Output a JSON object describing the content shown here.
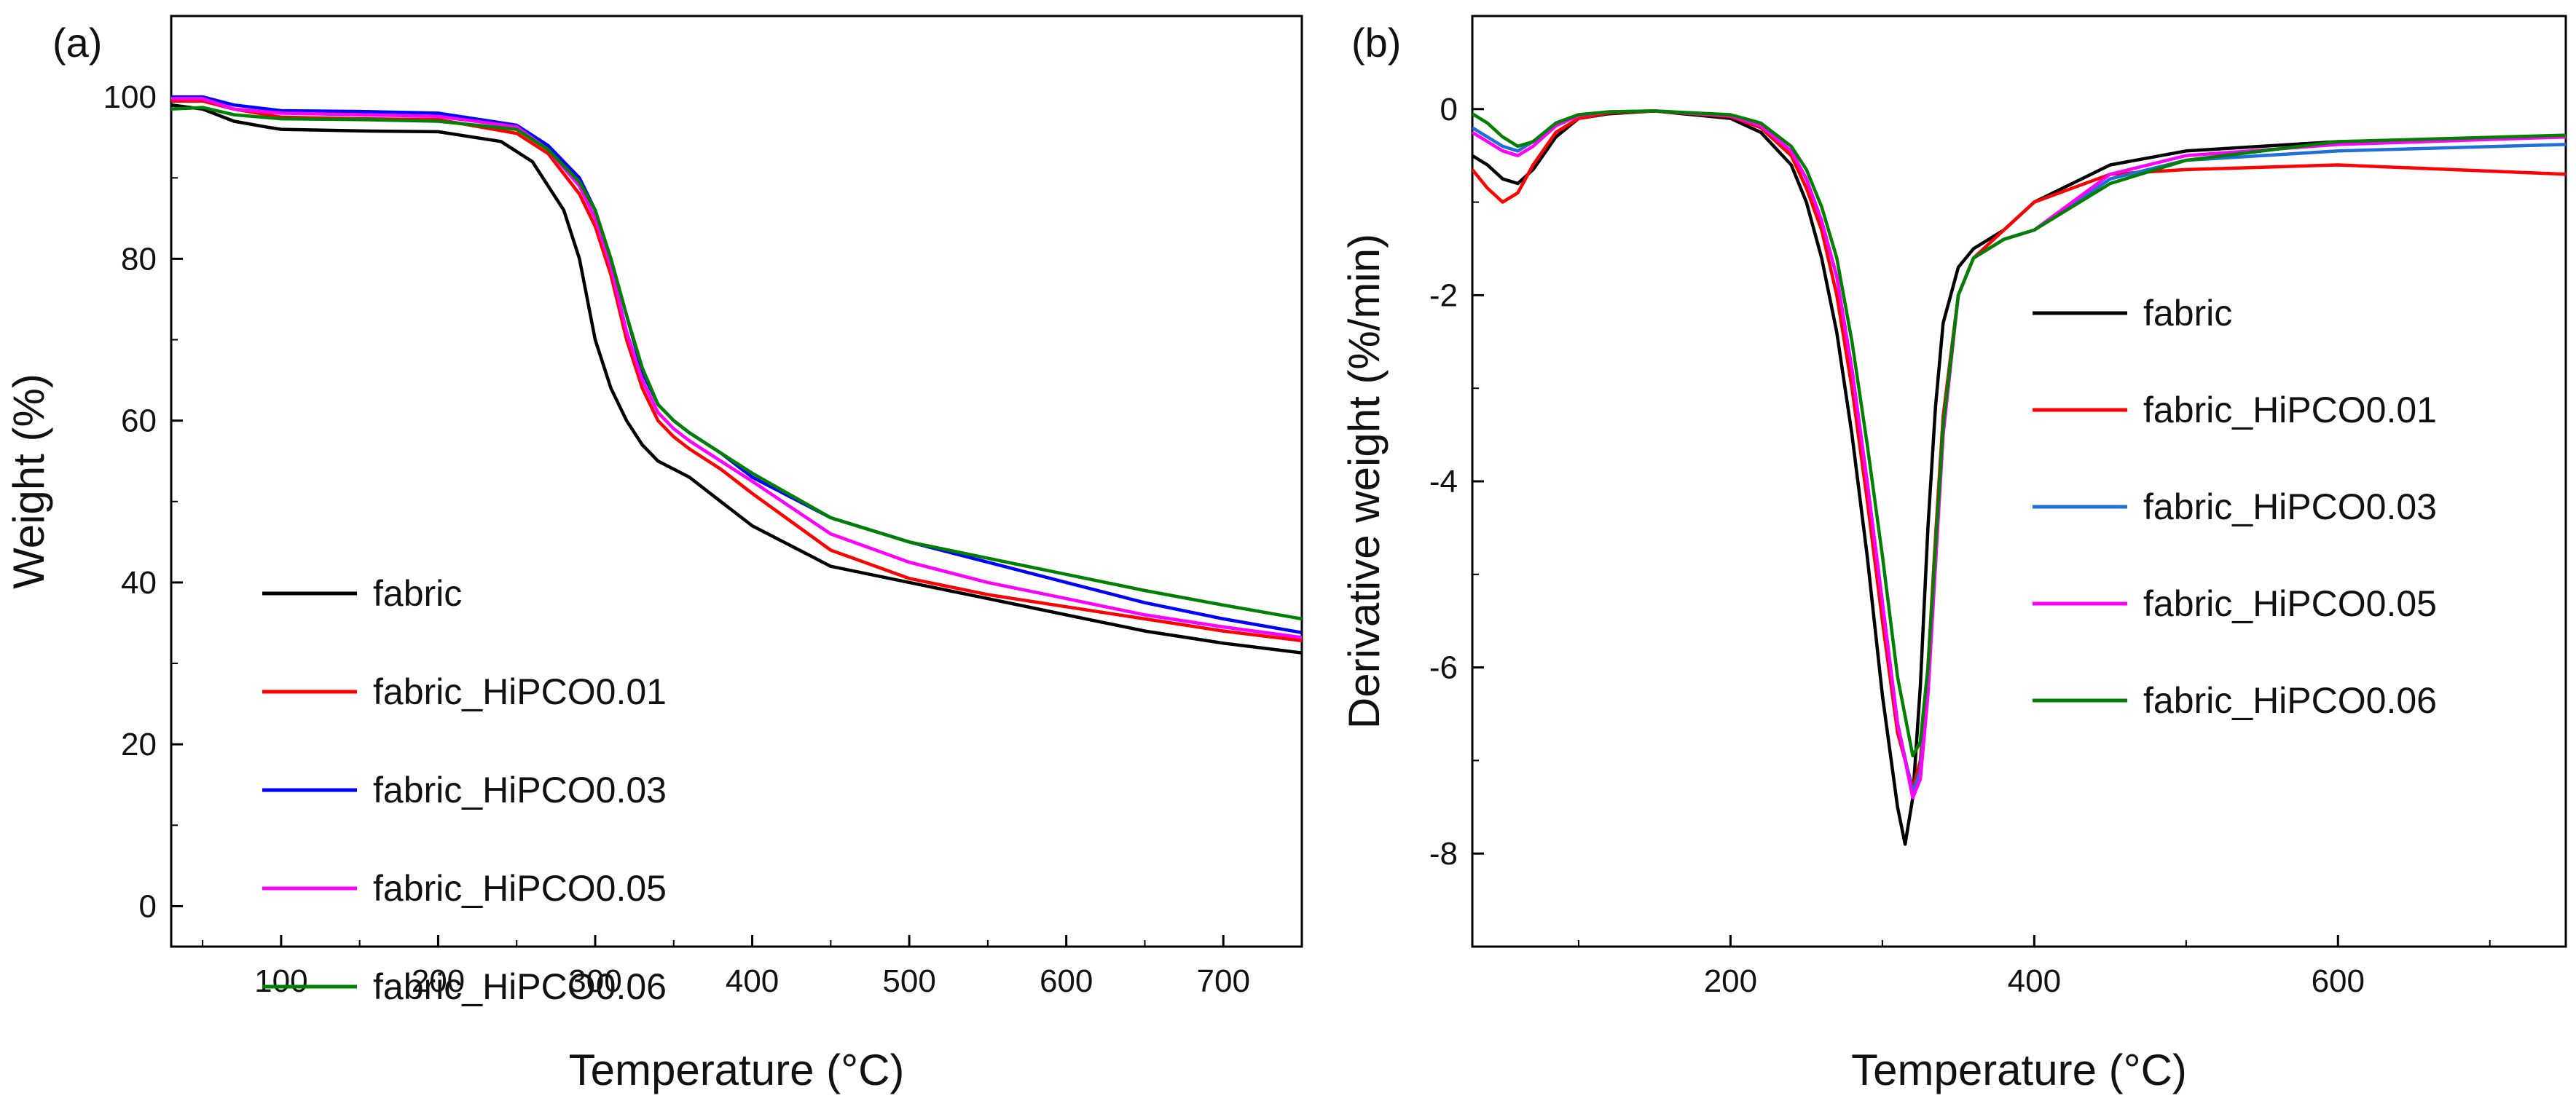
{
  "figure": {
    "panels": [
      "(a)",
      "(b)"
    ]
  },
  "chart_data": [
    {
      "type": "line",
      "panel_label": "(a)",
      "xlabel": "Temperature (°C)",
      "ylabel": "Weight (%)",
      "xlim": [
        30,
        750
      ],
      "ylim": [
        -5,
        110
      ],
      "x_ticks": [
        100,
        200,
        300,
        400,
        500,
        600,
        700
      ],
      "x_tick_labels": [
        "100",
        "200",
        "300",
        "400",
        "500",
        "600",
        "700"
      ],
      "y_ticks": [
        0,
        20,
        40,
        60,
        80,
        100
      ],
      "y_tick_labels": [
        "0",
        "20",
        "40",
        "60",
        "80",
        "100"
      ],
      "legend_position": "lower-left",
      "series": [
        {
          "name": "fabric",
          "color": "#000000",
          "x": [
            30,
            50,
            70,
            90,
            100,
            150,
            200,
            240,
            260,
            280,
            290,
            300,
            310,
            320,
            330,
            340,
            350,
            360,
            380,
            400,
            450,
            500,
            550,
            600,
            650,
            700,
            750
          ],
          "y": [
            99,
            98.5,
            97,
            96.3,
            96,
            95.8,
            95.7,
            94.5,
            92,
            86,
            80,
            70,
            64,
            60,
            57,
            55,
            54,
            53,
            50,
            47,
            42,
            40,
            38,
            36,
            34,
            32.5,
            31.3
          ]
        },
        {
          "name": "fabric_HiPCO0.01",
          "color": "#ff0000",
          "x": [
            30,
            50,
            70,
            100,
            150,
            200,
            250,
            270,
            290,
            300,
            310,
            320,
            330,
            340,
            350,
            360,
            380,
            400,
            450,
            500,
            550,
            600,
            650,
            700,
            750
          ],
          "y": [
            99.5,
            99.5,
            98.5,
            97.5,
            97.3,
            97.2,
            95.5,
            93,
            88,
            84,
            78,
            70,
            64,
            60,
            58,
            56.5,
            54,
            51,
            44,
            40.5,
            38.5,
            37,
            35.5,
            34,
            32.8
          ]
        },
        {
          "name": "fabric_HiPCO0.03",
          "color": "#0000ff",
          "x": [
            30,
            50,
            70,
            100,
            150,
            200,
            250,
            270,
            290,
            300,
            310,
            320,
            330,
            340,
            350,
            360,
            380,
            400,
            450,
            500,
            550,
            600,
            650,
            700,
            750
          ],
          "y": [
            100,
            100,
            99,
            98.3,
            98.2,
            98,
            96.5,
            94,
            90,
            86,
            80,
            73,
            66,
            62,
            60,
            58.5,
            56,
            53,
            48,
            45,
            42.5,
            40,
            37.5,
            35.5,
            33.8
          ]
        },
        {
          "name": "fabric_HiPCO0.05",
          "color": "#ff00ff",
          "x": [
            30,
            50,
            70,
            100,
            150,
            200,
            250,
            270,
            290,
            300,
            310,
            320,
            330,
            340,
            350,
            360,
            380,
            400,
            450,
            500,
            550,
            600,
            650,
            700,
            750
          ],
          "y": [
            99.8,
            99.8,
            98.5,
            98,
            97.8,
            97.6,
            96.3,
            93.5,
            89,
            85,
            79,
            71,
            65,
            61,
            59,
            57.5,
            55,
            52.5,
            46,
            42.5,
            40,
            38,
            36,
            34.5,
            33.2
          ]
        },
        {
          "name": "fabric_HiPCO0.06",
          "color": "#008000",
          "x": [
            30,
            50,
            70,
            100,
            150,
            200,
            250,
            270,
            290,
            300,
            310,
            320,
            330,
            340,
            350,
            360,
            380,
            400,
            450,
            500,
            550,
            600,
            650,
            700,
            750
          ],
          "y": [
            98.5,
            98.7,
            97.8,
            97.3,
            97.2,
            97,
            96,
            93.5,
            89.5,
            86,
            80,
            73,
            66.5,
            62,
            60,
            58.5,
            56,
            53.5,
            48,
            45,
            43,
            41,
            39,
            37.2,
            35.5
          ]
        }
      ]
    },
    {
      "type": "line",
      "panel_label": "(b)",
      "xlabel": "Temperature (°C)",
      "ylabel": "Derivative weight (%/min)",
      "xlim": [
        30,
        750
      ],
      "ylim": [
        -9,
        1
      ],
      "x_ticks": [
        200,
        400,
        600
      ],
      "x_tick_labels": [
        "200",
        "400",
        "600"
      ],
      "y_ticks": [
        0,
        -2,
        -4,
        -6,
        -8
      ],
      "y_tick_labels": [
        "0",
        "-2",
        "-4",
        "-6",
        "-8"
      ],
      "legend_position": "right",
      "series": [
        {
          "name": "fabric",
          "color": "#000000",
          "x": [
            30,
            40,
            50,
            60,
            70,
            85,
            100,
            120,
            150,
            200,
            220,
            240,
            250,
            260,
            270,
            280,
            290,
            300,
            310,
            315,
            320,
            325,
            330,
            335,
            340,
            350,
            360,
            380,
            400,
            450,
            500,
            600,
            750
          ],
          "y": [
            -0.5,
            -0.6,
            -0.75,
            -0.8,
            -0.65,
            -0.3,
            -0.1,
            -0.05,
            -0.02,
            -0.1,
            -0.25,
            -0.6,
            -1.0,
            -1.6,
            -2.4,
            -3.5,
            -4.8,
            -6.3,
            -7.5,
            -7.9,
            -7.4,
            -6.2,
            -4.5,
            -3.2,
            -2.3,
            -1.7,
            -1.5,
            -1.3,
            -1.0,
            -0.6,
            -0.45,
            -0.35,
            -0.3
          ]
        },
        {
          "name": "fabric_HiPCO0.01",
          "color": "#ff0000",
          "x": [
            30,
            40,
            50,
            60,
            70,
            85,
            100,
            120,
            150,
            200,
            220,
            240,
            250,
            260,
            270,
            280,
            290,
            300,
            310,
            320,
            325,
            330,
            335,
            340,
            350,
            360,
            380,
            400,
            450,
            500,
            600,
            750
          ],
          "y": [
            -0.65,
            -0.85,
            -1.0,
            -0.9,
            -0.6,
            -0.25,
            -0.1,
            -0.04,
            -0.02,
            -0.08,
            -0.2,
            -0.5,
            -0.85,
            -1.3,
            -2.0,
            -3.0,
            -4.2,
            -5.5,
            -6.7,
            -7.3,
            -7.0,
            -6.0,
            -4.6,
            -3.3,
            -2.0,
            -1.6,
            -1.3,
            -1.0,
            -0.7,
            -0.65,
            -0.6,
            -0.7
          ]
        },
        {
          "name": "fabric_HiPCO0.03",
          "color": "#1e6fd9",
          "x": [
            30,
            40,
            50,
            60,
            70,
            85,
            100,
            120,
            150,
            200,
            220,
            240,
            250,
            260,
            270,
            280,
            290,
            300,
            310,
            320,
            325,
            330,
            335,
            340,
            350,
            360,
            380,
            400,
            450,
            500,
            600,
            750
          ],
          "y": [
            -0.2,
            -0.3,
            -0.4,
            -0.45,
            -0.35,
            -0.15,
            -0.06,
            -0.03,
            -0.02,
            -0.07,
            -0.18,
            -0.45,
            -0.75,
            -1.2,
            -1.8,
            -2.8,
            -4.0,
            -5.3,
            -6.6,
            -7.35,
            -7.1,
            -6.2,
            -4.8,
            -3.4,
            -2.0,
            -1.6,
            -1.4,
            -1.3,
            -0.75,
            -0.55,
            -0.45,
            -0.38
          ]
        },
        {
          "name": "fabric_HiPCO0.05",
          "color": "#ff00ff",
          "x": [
            30,
            40,
            50,
            60,
            70,
            85,
            100,
            120,
            150,
            200,
            220,
            240,
            250,
            260,
            270,
            280,
            290,
            300,
            310,
            320,
            325,
            330,
            335,
            340,
            350,
            360,
            380,
            400,
            450,
            500,
            600,
            750
          ],
          "y": [
            -0.25,
            -0.35,
            -0.45,
            -0.5,
            -0.4,
            -0.18,
            -0.07,
            -0.03,
            -0.02,
            -0.07,
            -0.18,
            -0.45,
            -0.75,
            -1.2,
            -1.8,
            -2.8,
            -4.0,
            -5.3,
            -6.6,
            -7.4,
            -7.2,
            -6.3,
            -4.9,
            -3.5,
            -2.0,
            -1.6,
            -1.4,
            -1.3,
            -0.7,
            -0.5,
            -0.38,
            -0.3
          ]
        },
        {
          "name": "fabric_HiPCO0.06",
          "color": "#008000",
          "x": [
            30,
            40,
            50,
            60,
            70,
            85,
            100,
            120,
            150,
            200,
            220,
            240,
            250,
            260,
            270,
            280,
            290,
            300,
            310,
            320,
            325,
            330,
            335,
            340,
            350,
            360,
            380,
            400,
            450,
            500,
            600,
            750
          ],
          "y": [
            -0.05,
            -0.15,
            -0.3,
            -0.4,
            -0.35,
            -0.15,
            -0.06,
            -0.03,
            -0.02,
            -0.06,
            -0.15,
            -0.4,
            -0.65,
            -1.05,
            -1.6,
            -2.5,
            -3.6,
            -4.8,
            -6.1,
            -6.95,
            -6.8,
            -6.0,
            -4.7,
            -3.4,
            -2.0,
            -1.6,
            -1.4,
            -1.3,
            -0.8,
            -0.55,
            -0.35,
            -0.28
          ]
        }
      ]
    }
  ]
}
